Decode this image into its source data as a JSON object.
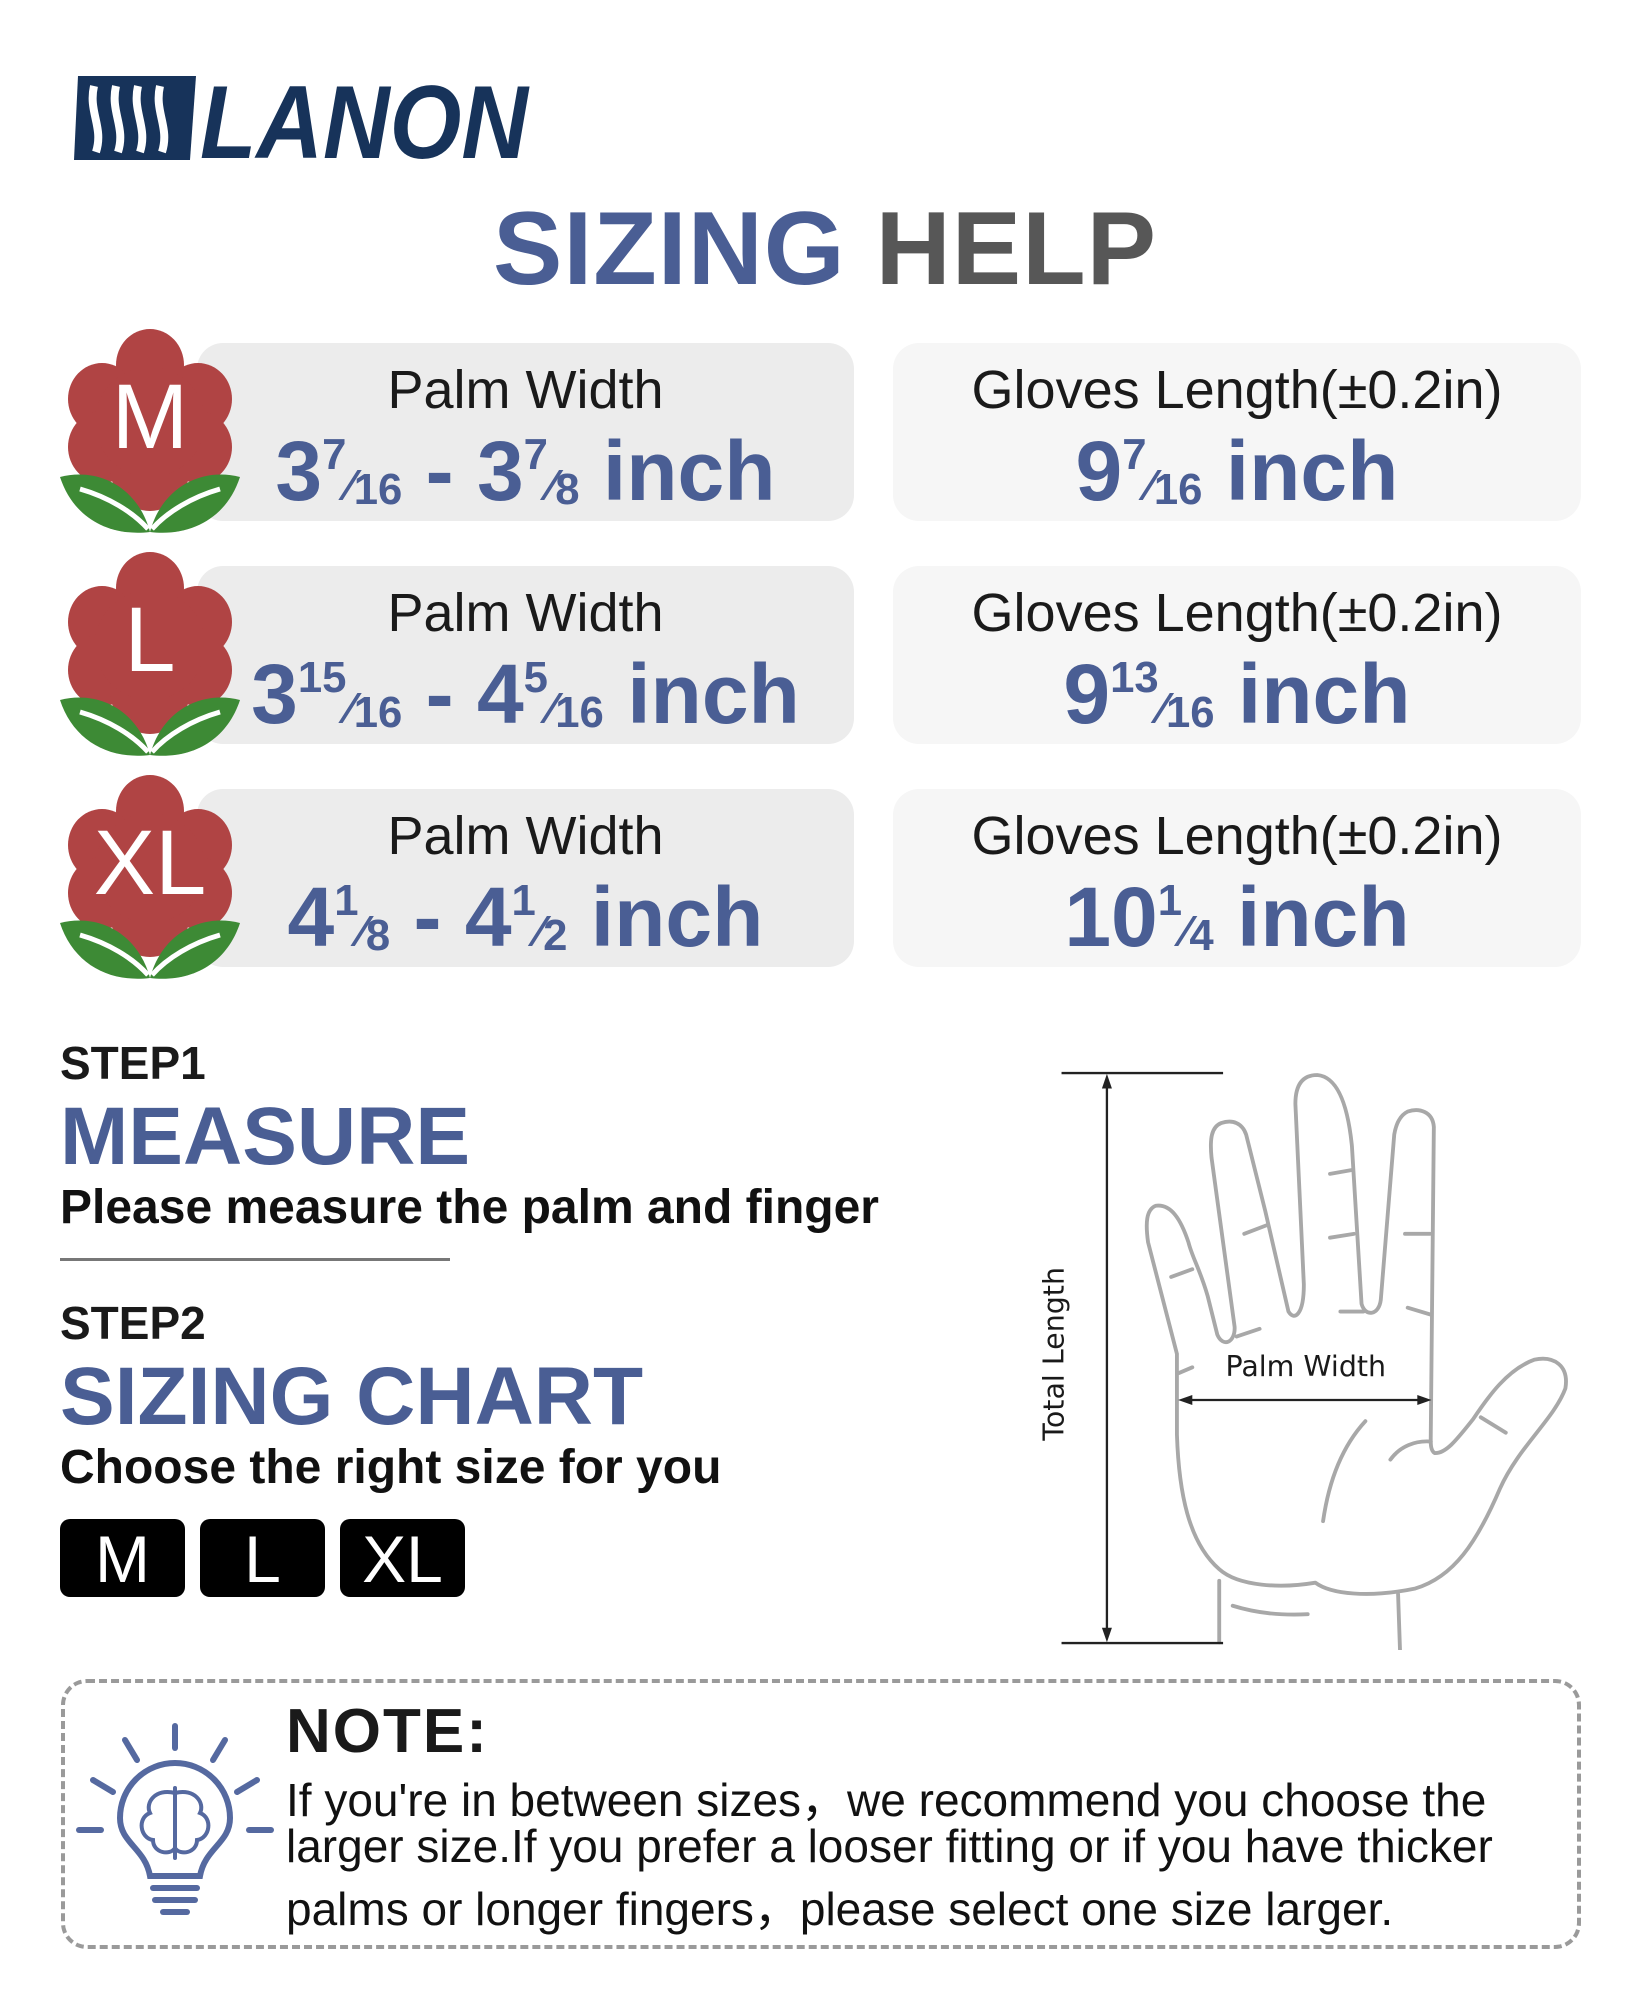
{
  "brand": {
    "name": "LANON",
    "color": "#17335a"
  },
  "title": {
    "part1": "SIZING",
    "part2": "HELP"
  },
  "colors": {
    "accent": "#4a5e94",
    "flower": "#b04444",
    "leaf": "#3d8a35"
  },
  "sizes": [
    {
      "size": "M",
      "palm_label": "Palm Width",
      "palm": {
        "from": {
          "whole": "3",
          "num": "7",
          "den": "16"
        },
        "sep": "-",
        "to": {
          "whole": "3",
          "num": "7",
          "den": "8"
        },
        "unit": "inch"
      },
      "length_label": "Gloves Length(±0.2in)",
      "length": {
        "whole": "9",
        "num": "7",
        "den": "16",
        "unit": "inch"
      }
    },
    {
      "size": "L",
      "palm_label": "Palm Width",
      "palm": {
        "from": {
          "whole": "3",
          "num": "15",
          "den": "16"
        },
        "sep": "-",
        "to": {
          "whole": "4",
          "num": "5",
          "den": "16"
        },
        "unit": "inch"
      },
      "length_label": "Gloves Length(±0.2in)",
      "length": {
        "whole": "9",
        "num": "13",
        "den": "16",
        "unit": "inch"
      }
    },
    {
      "size": "XL",
      "palm_label": "Palm Width",
      "palm": {
        "from": {
          "whole": "4",
          "num": "1",
          "den": "8"
        },
        "sep": "-",
        "to": {
          "whole": "4",
          "num": "1",
          "den": "2"
        },
        "unit": "inch"
      },
      "length_label": "Gloves Length(±0.2in)",
      "length": {
        "whole": "10",
        "num": "1",
        "den": "4",
        "unit": "inch"
      }
    }
  ],
  "step1": {
    "label": "STEP1",
    "title": "MEASURE",
    "desc": "Please measure the palm and finger"
  },
  "step2": {
    "label": "STEP2",
    "title": "SIZING CHART",
    "desc": "Choose the right size for you",
    "options": [
      "M",
      "L",
      "XL"
    ]
  },
  "diagram": {
    "total_length": "Total Length",
    "palm_width": "Palm Width"
  },
  "note": {
    "title": "NOTE:",
    "lines": [
      "If you're in between sizes，we recommend you choose the",
      "larger size.If you prefer a looser fitting or if you have thicker",
      "palms or longer fingers，please select one size larger."
    ]
  }
}
